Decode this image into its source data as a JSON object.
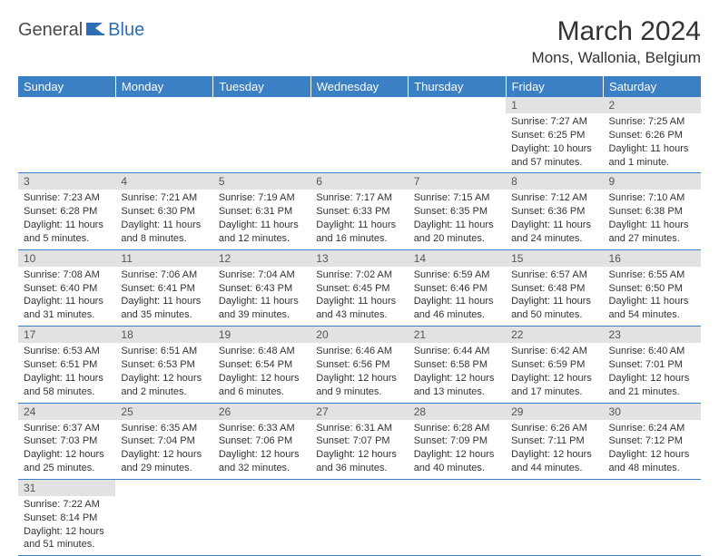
{
  "brand": {
    "part1": "General",
    "part2": "Blue"
  },
  "title": "March 2024",
  "location": "Mons, Wallonia, Belgium",
  "colors": {
    "header_bg": "#3b7fc4",
    "header_text": "#ffffff",
    "daynum_bg": "#e2e2e2",
    "daynum_text": "#555555",
    "body_text": "#333333",
    "rule": "#3b7fc4",
    "logo_accent": "#2d6db3"
  },
  "weekdays": [
    "Sunday",
    "Monday",
    "Tuesday",
    "Wednesday",
    "Thursday",
    "Friday",
    "Saturday"
  ],
  "cells": [
    {
      "n": "",
      "sr": "",
      "ss": "",
      "dl": ""
    },
    {
      "n": "",
      "sr": "",
      "ss": "",
      "dl": ""
    },
    {
      "n": "",
      "sr": "",
      "ss": "",
      "dl": ""
    },
    {
      "n": "",
      "sr": "",
      "ss": "",
      "dl": ""
    },
    {
      "n": "",
      "sr": "",
      "ss": "",
      "dl": ""
    },
    {
      "n": "1",
      "sr": "Sunrise: 7:27 AM",
      "ss": "Sunset: 6:25 PM",
      "dl": "Daylight: 10 hours and 57 minutes."
    },
    {
      "n": "2",
      "sr": "Sunrise: 7:25 AM",
      "ss": "Sunset: 6:26 PM",
      "dl": "Daylight: 11 hours and 1 minute."
    },
    {
      "n": "3",
      "sr": "Sunrise: 7:23 AM",
      "ss": "Sunset: 6:28 PM",
      "dl": "Daylight: 11 hours and 5 minutes."
    },
    {
      "n": "4",
      "sr": "Sunrise: 7:21 AM",
      "ss": "Sunset: 6:30 PM",
      "dl": "Daylight: 11 hours and 8 minutes."
    },
    {
      "n": "5",
      "sr": "Sunrise: 7:19 AM",
      "ss": "Sunset: 6:31 PM",
      "dl": "Daylight: 11 hours and 12 minutes."
    },
    {
      "n": "6",
      "sr": "Sunrise: 7:17 AM",
      "ss": "Sunset: 6:33 PM",
      "dl": "Daylight: 11 hours and 16 minutes."
    },
    {
      "n": "7",
      "sr": "Sunrise: 7:15 AM",
      "ss": "Sunset: 6:35 PM",
      "dl": "Daylight: 11 hours and 20 minutes."
    },
    {
      "n": "8",
      "sr": "Sunrise: 7:12 AM",
      "ss": "Sunset: 6:36 PM",
      "dl": "Daylight: 11 hours and 24 minutes."
    },
    {
      "n": "9",
      "sr": "Sunrise: 7:10 AM",
      "ss": "Sunset: 6:38 PM",
      "dl": "Daylight: 11 hours and 27 minutes."
    },
    {
      "n": "10",
      "sr": "Sunrise: 7:08 AM",
      "ss": "Sunset: 6:40 PM",
      "dl": "Daylight: 11 hours and 31 minutes."
    },
    {
      "n": "11",
      "sr": "Sunrise: 7:06 AM",
      "ss": "Sunset: 6:41 PM",
      "dl": "Daylight: 11 hours and 35 minutes."
    },
    {
      "n": "12",
      "sr": "Sunrise: 7:04 AM",
      "ss": "Sunset: 6:43 PM",
      "dl": "Daylight: 11 hours and 39 minutes."
    },
    {
      "n": "13",
      "sr": "Sunrise: 7:02 AM",
      "ss": "Sunset: 6:45 PM",
      "dl": "Daylight: 11 hours and 43 minutes."
    },
    {
      "n": "14",
      "sr": "Sunrise: 6:59 AM",
      "ss": "Sunset: 6:46 PM",
      "dl": "Daylight: 11 hours and 46 minutes."
    },
    {
      "n": "15",
      "sr": "Sunrise: 6:57 AM",
      "ss": "Sunset: 6:48 PM",
      "dl": "Daylight: 11 hours and 50 minutes."
    },
    {
      "n": "16",
      "sr": "Sunrise: 6:55 AM",
      "ss": "Sunset: 6:50 PM",
      "dl": "Daylight: 11 hours and 54 minutes."
    },
    {
      "n": "17",
      "sr": "Sunrise: 6:53 AM",
      "ss": "Sunset: 6:51 PM",
      "dl": "Daylight: 11 hours and 58 minutes."
    },
    {
      "n": "18",
      "sr": "Sunrise: 6:51 AM",
      "ss": "Sunset: 6:53 PM",
      "dl": "Daylight: 12 hours and 2 minutes."
    },
    {
      "n": "19",
      "sr": "Sunrise: 6:48 AM",
      "ss": "Sunset: 6:54 PM",
      "dl": "Daylight: 12 hours and 6 minutes."
    },
    {
      "n": "20",
      "sr": "Sunrise: 6:46 AM",
      "ss": "Sunset: 6:56 PM",
      "dl": "Daylight: 12 hours and 9 minutes."
    },
    {
      "n": "21",
      "sr": "Sunrise: 6:44 AM",
      "ss": "Sunset: 6:58 PM",
      "dl": "Daylight: 12 hours and 13 minutes."
    },
    {
      "n": "22",
      "sr": "Sunrise: 6:42 AM",
      "ss": "Sunset: 6:59 PM",
      "dl": "Daylight: 12 hours and 17 minutes."
    },
    {
      "n": "23",
      "sr": "Sunrise: 6:40 AM",
      "ss": "Sunset: 7:01 PM",
      "dl": "Daylight: 12 hours and 21 minutes."
    },
    {
      "n": "24",
      "sr": "Sunrise: 6:37 AM",
      "ss": "Sunset: 7:03 PM",
      "dl": "Daylight: 12 hours and 25 minutes."
    },
    {
      "n": "25",
      "sr": "Sunrise: 6:35 AM",
      "ss": "Sunset: 7:04 PM",
      "dl": "Daylight: 12 hours and 29 minutes."
    },
    {
      "n": "26",
      "sr": "Sunrise: 6:33 AM",
      "ss": "Sunset: 7:06 PM",
      "dl": "Daylight: 12 hours and 32 minutes."
    },
    {
      "n": "27",
      "sr": "Sunrise: 6:31 AM",
      "ss": "Sunset: 7:07 PM",
      "dl": "Daylight: 12 hours and 36 minutes."
    },
    {
      "n": "28",
      "sr": "Sunrise: 6:28 AM",
      "ss": "Sunset: 7:09 PM",
      "dl": "Daylight: 12 hours and 40 minutes."
    },
    {
      "n": "29",
      "sr": "Sunrise: 6:26 AM",
      "ss": "Sunset: 7:11 PM",
      "dl": "Daylight: 12 hours and 44 minutes."
    },
    {
      "n": "30",
      "sr": "Sunrise: 6:24 AM",
      "ss": "Sunset: 7:12 PM",
      "dl": "Daylight: 12 hours and 48 minutes."
    },
    {
      "n": "31",
      "sr": "Sunrise: 7:22 AM",
      "ss": "Sunset: 8:14 PM",
      "dl": "Daylight: 12 hours and 51 minutes."
    },
    {
      "n": "",
      "sr": "",
      "ss": "",
      "dl": ""
    },
    {
      "n": "",
      "sr": "",
      "ss": "",
      "dl": ""
    },
    {
      "n": "",
      "sr": "",
      "ss": "",
      "dl": ""
    },
    {
      "n": "",
      "sr": "",
      "ss": "",
      "dl": ""
    },
    {
      "n": "",
      "sr": "",
      "ss": "",
      "dl": ""
    },
    {
      "n": "",
      "sr": "",
      "ss": "",
      "dl": ""
    }
  ]
}
